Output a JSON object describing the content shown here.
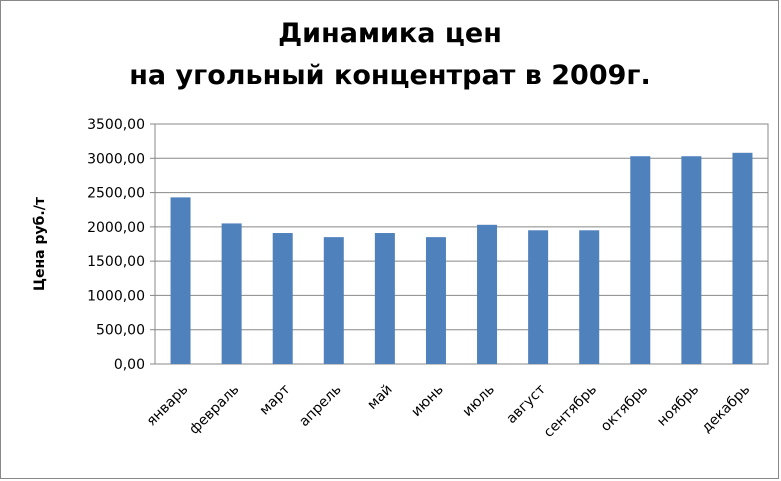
{
  "chart_data": {
    "type": "bar",
    "title": [
      "Динамика цен",
      "на угольный концентрат в 2009г."
    ],
    "y_label": "Цена руб./т",
    "categories": [
      "январь",
      "февраль",
      "март",
      "апрель",
      "май",
      "июнь",
      "июль",
      "август",
      "сентябрь",
      "октябрь",
      "ноябрь",
      "декабрь"
    ],
    "values": [
      2430,
      2050,
      1910,
      1850,
      1910,
      1850,
      2030,
      1950,
      1950,
      3030,
      3030,
      3080
    ],
    "color": "#4f81bd",
    "ylim": [
      0,
      3500
    ],
    "yticks": [
      {
        "value": 0,
        "label": "0,00"
      },
      {
        "value": 500,
        "label": "500,00"
      },
      {
        "value": 1000,
        "label": "1000,00"
      },
      {
        "value": 1500,
        "label": "1500,00"
      },
      {
        "value": 2000,
        "label": "2000,00"
      },
      {
        "value": 2500,
        "label": "2500,00"
      },
      {
        "value": 3000,
        "label": "3000,00"
      },
      {
        "value": 3500,
        "label": "3500,00"
      }
    ],
    "grid": true
  }
}
